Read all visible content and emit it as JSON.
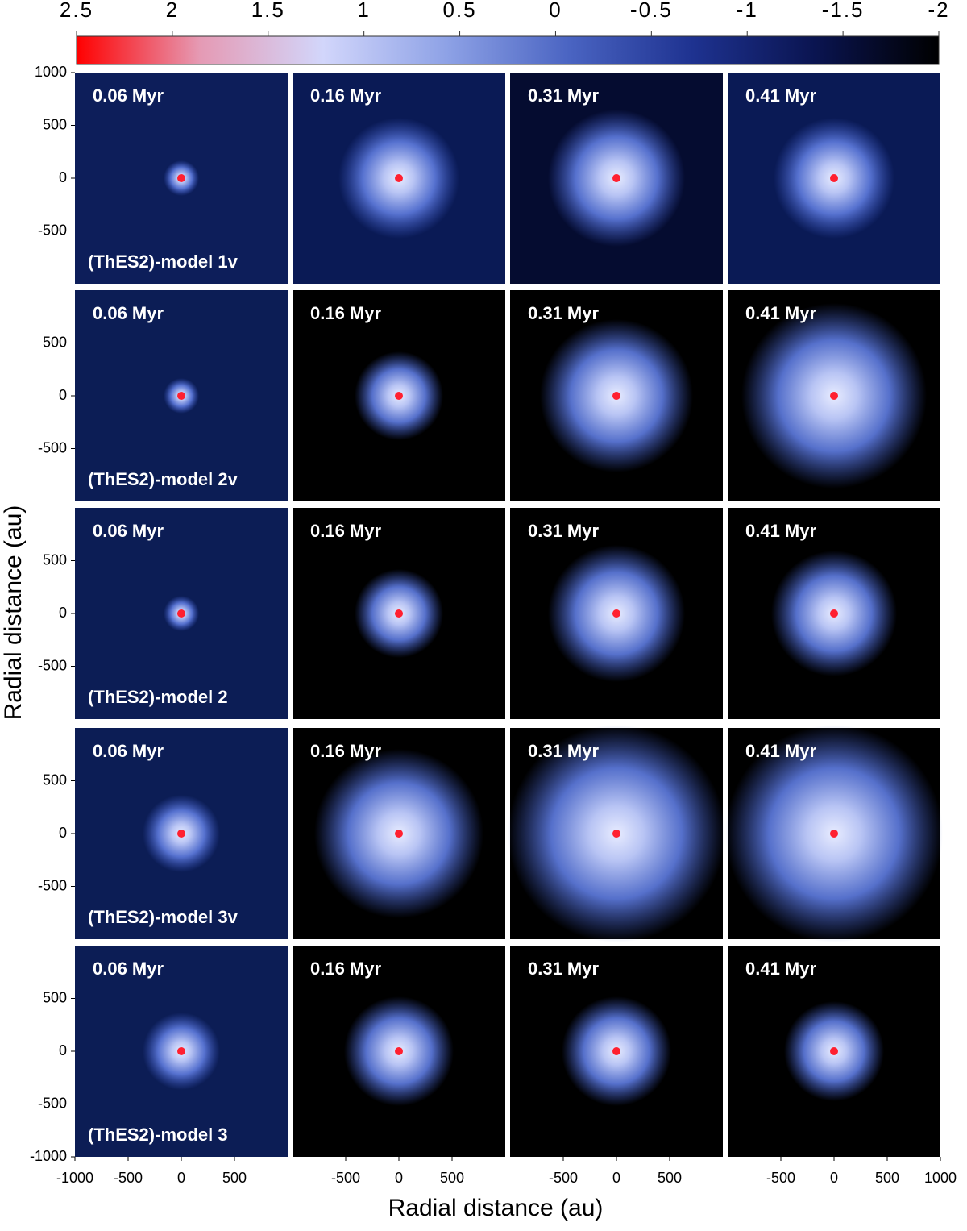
{
  "colorbar": {
    "lim": [
      2.5,
      -2
    ],
    "ticks": [
      2.5,
      2,
      1.5,
      1,
      0.5,
      0,
      -0.5,
      -1,
      -1.5,
      -2
    ],
    "colors": [
      "#ff0000",
      "#e59ab4",
      "#d2d6fb",
      "#8ea2e6",
      "#4a64c2",
      "#1e3290",
      "#0a1450",
      "#000000"
    ]
  },
  "y_axis": {
    "label": "Radial distance (au)",
    "lim": [
      -1000,
      1000
    ],
    "rows": [
      [
        1000,
        500,
        0,
        -500
      ],
      [
        500,
        0,
        -500
      ],
      [
        500,
        0,
        -500
      ],
      [
        500,
        0,
        -500
      ],
      [
        500,
        0,
        -500,
        -1000
      ]
    ]
  },
  "x_axis": {
    "label": "Radial distance (au)",
    "lim": [
      -1000,
      1000
    ],
    "columns": [
      [
        -1000,
        -500,
        0,
        500
      ],
      [
        -500,
        0,
        500
      ],
      [
        -500,
        0,
        500
      ],
      [
        -500,
        0,
        500,
        1000
      ]
    ]
  },
  "panels": [
    {
      "model": "(ThES2)-model 1v",
      "times": [
        "0.06 Myr",
        "0.16 Myr",
        "0.31 Myr",
        "0.41 Myr"
      ]
    },
    {
      "model": "(ThES2)-model 2v",
      "times": [
        "0.06 Myr",
        "0.16 Myr",
        "0.31 Myr",
        "0.41 Myr"
      ]
    },
    {
      "model": "(ThES2)-model 2",
      "times": [
        "0.06 Myr",
        "0.16 Myr",
        "0.31 Myr",
        "0.41 Myr"
      ]
    },
    {
      "model": "(ThES2)-model 3v",
      "times": [
        "0.06 Myr",
        "0.16 Myr",
        "0.31 Myr",
        "0.41 Myr"
      ]
    },
    {
      "model": "(ThES2)-model 3",
      "times": [
        "0.06 Myr",
        "0.16 Myr",
        "0.31 Myr",
        "0.41 Myr"
      ]
    }
  ]
}
